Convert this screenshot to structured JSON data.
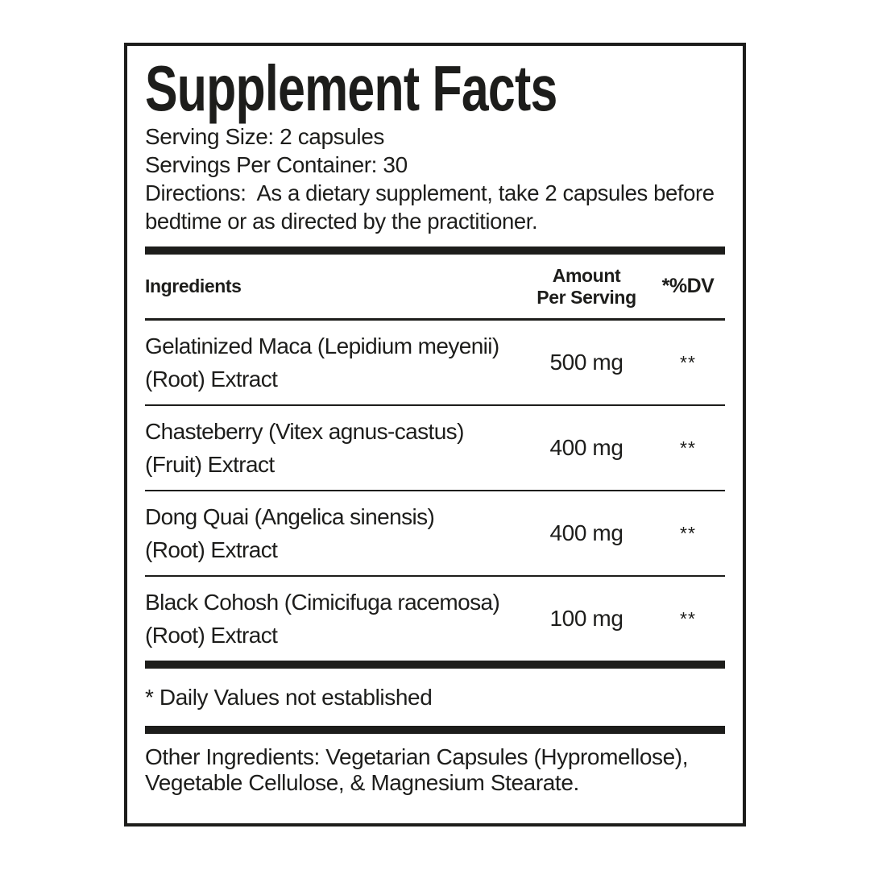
{
  "label": {
    "title": "Supplement Facts",
    "serving_size": "Serving Size: 2 capsules",
    "servings_per_container": "Servings Per Container: 30",
    "directions": "Directions:  As a dietary supplement, take 2 capsules before bedtime or as directed by the practitioner.",
    "header": {
      "ingredients": "Ingredients",
      "amount_line1": "Amount",
      "amount_line2": "Per Serving",
      "dv": "*%DV"
    },
    "rows": [
      {
        "name": "Gelatinized Maca (Lepidium meyenii)\n(Root) Extract",
        "amount": "500 mg",
        "dv": "**"
      },
      {
        "name": "Chasteberry (Vitex agnus-castus)\n(Fruit) Extract",
        "amount": "400 mg",
        "dv": "**"
      },
      {
        "name": "Dong Quai (Angelica sinensis)\n(Root) Extract",
        "amount": "400 mg",
        "dv": "**"
      },
      {
        "name": "Black Cohosh (Cimicifuga racemosa)\n(Root) Extract",
        "amount": "100 mg",
        "dv": "**"
      }
    ],
    "footnote": "* Daily Values not established",
    "other_ingredients": "Other Ingredients: Vegetarian Capsules (Hypromellose),\nVegetable Cellulose, & Magnesium Stearate."
  },
  "colors": {
    "text": "#1d1d1b",
    "rule": "#1d1d1b",
    "background": "#ffffff"
  }
}
